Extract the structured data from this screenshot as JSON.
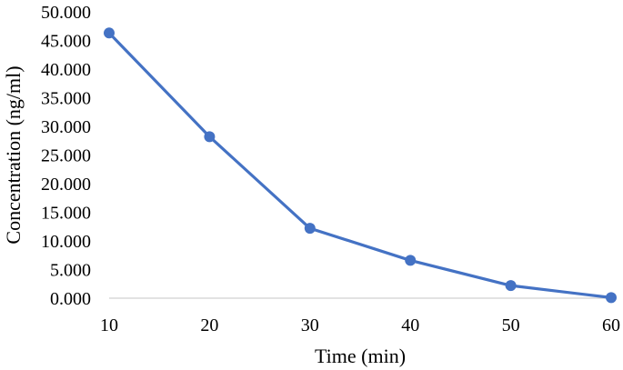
{
  "chart_data": {
    "type": "line",
    "title": "",
    "xlabel": "Time (min)",
    "ylabel": "Concentration (ng/ml)",
    "x": [
      10,
      20,
      30,
      40,
      50,
      60
    ],
    "series": [
      {
        "values": [
          46.3,
          28.2,
          12.2,
          6.6,
          2.2,
          0.1
        ]
      }
    ],
    "xlim": [
      10,
      60
    ],
    "ylim": [
      0,
      50
    ],
    "x_ticks": [
      "10",
      "20",
      "30",
      "40",
      "50",
      "60"
    ],
    "y_ticks": [
      "0.000",
      "5.000",
      "10.000",
      "15.000",
      "20.000",
      "25.000",
      "30.000",
      "35.000",
      "40.000",
      "45.000",
      "50.000"
    ],
    "grid": false,
    "legend": "none",
    "colors": {
      "series": "#4472C4",
      "axis": "#D9D9D9"
    }
  }
}
